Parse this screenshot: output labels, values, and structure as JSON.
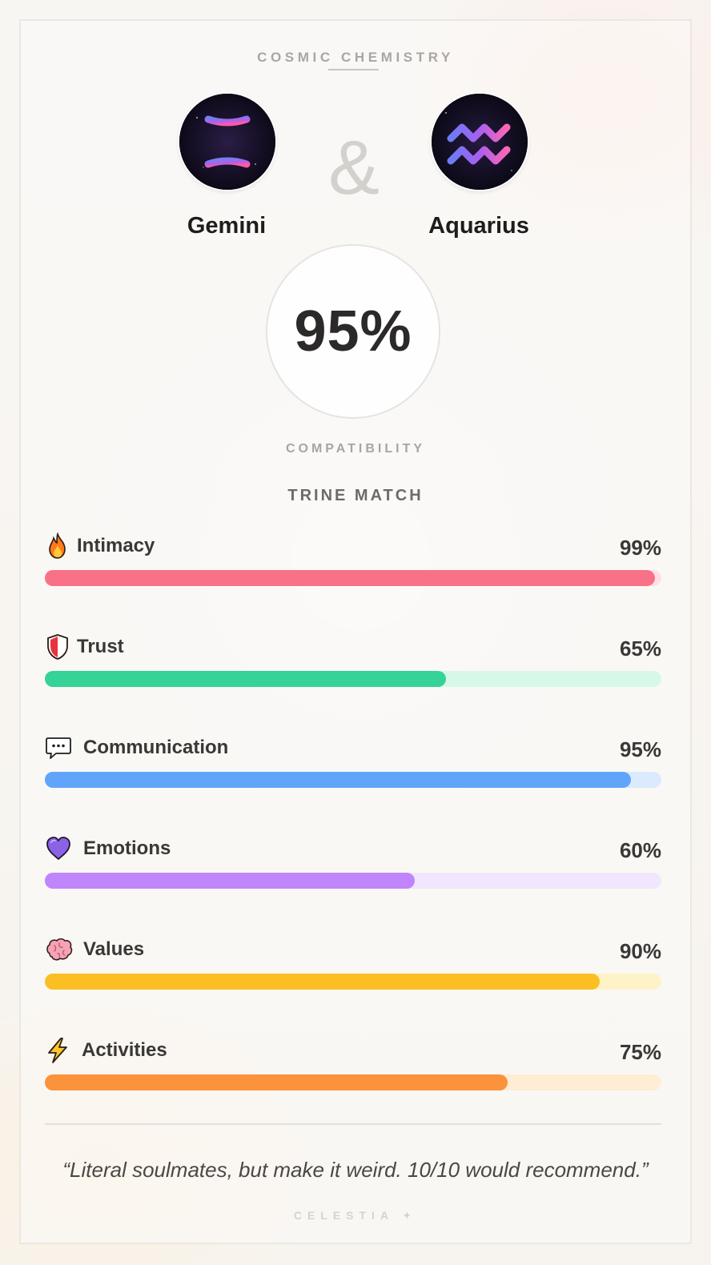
{
  "header": {
    "title": "COSMIC CHEMISTRY"
  },
  "pair": {
    "sign_a": {
      "name": "Gemini",
      "icon": "gemini-icon"
    },
    "connector": "&",
    "sign_b": {
      "name": "Aquarius",
      "icon": "aquarius-icon"
    }
  },
  "score": {
    "value": "95%",
    "label": "COMPATIBILITY",
    "match_type": "TRINE MATCH"
  },
  "metrics": [
    {
      "label": "Intimacy",
      "value": "99%",
      "level": 0.99,
      "icon": "fire-icon",
      "color": "#f87187",
      "track": "#fde0e5"
    },
    {
      "label": "Trust",
      "value": "65%",
      "level": 0.65,
      "icon": "shield-icon",
      "color": "#35d395",
      "track": "#d6f8e8"
    },
    {
      "label": "Communication",
      "value": "95%",
      "level": 0.95,
      "icon": "speech-bubble-icon",
      "color": "#60a5fa",
      "track": "#dbeafe"
    },
    {
      "label": "Emotions",
      "value": "60%",
      "level": 0.6,
      "icon": "purple-heart-icon",
      "color": "#c084fc",
      "track": "#f1e6fd"
    },
    {
      "label": "Values",
      "value": "90%",
      "level": 0.9,
      "icon": "brain-icon",
      "color": "#fbbf24",
      "track": "#fef3c7"
    },
    {
      "label": "Activities",
      "value": "75%",
      "level": 0.75,
      "icon": "lightning-icon",
      "color": "#fb923c",
      "track": "#ffedd5"
    }
  ],
  "quote": "“Literal soulmates, but make it weird. 10/10 would recommend.”",
  "footer": "CELESTIA ✦"
}
